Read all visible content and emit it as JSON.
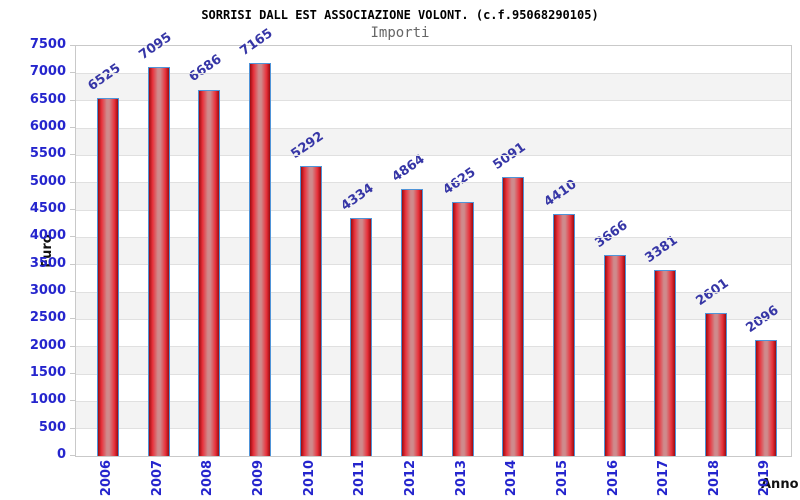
{
  "chart_data": {
    "type": "bar",
    "title": "SORRISI DALL EST ASSOCIAZIONE VOLONT. (c.f.95068290105)",
    "subtitle": "Importi",
    "xlabel": "Anno",
    "ylabel": "Euro",
    "categories": [
      "2006",
      "2007",
      "2008",
      "2009",
      "2010",
      "2011",
      "2012",
      "2013",
      "2014",
      "2015",
      "2016",
      "2017",
      "2018",
      "2019"
    ],
    "values": [
      6525,
      7095,
      6686,
      7165,
      5292,
      4334,
      4864,
      4625,
      5091,
      4410,
      3666,
      3381,
      2601,
      2096
    ],
    "ylim": [
      0,
      7500
    ],
    "ytick_step": 500,
    "yticks": [
      0,
      500,
      1000,
      1500,
      2000,
      2500,
      3000,
      3500,
      4000,
      4500,
      5000,
      5500,
      6000,
      6500,
      7000,
      7500
    ],
    "grid": "horizontal-bands",
    "legend": "none",
    "colors": {
      "axis_tick_text": "#2525cd",
      "value_label_text": "#3636a6",
      "title_text": "#000000",
      "subtitle_text": "#666666",
      "axis_title_text": "#111111",
      "bar_edge_dark": "#9c0a10",
      "bar_red": "#e8323c",
      "bar_center_light": "#cf8a8c",
      "bar_border": "#4f94d8",
      "band_white": "#ffffff",
      "band_gray": "#f3f3f3",
      "gridline": "#e0e0e0",
      "plot_border": "#c9c9c9"
    }
  }
}
